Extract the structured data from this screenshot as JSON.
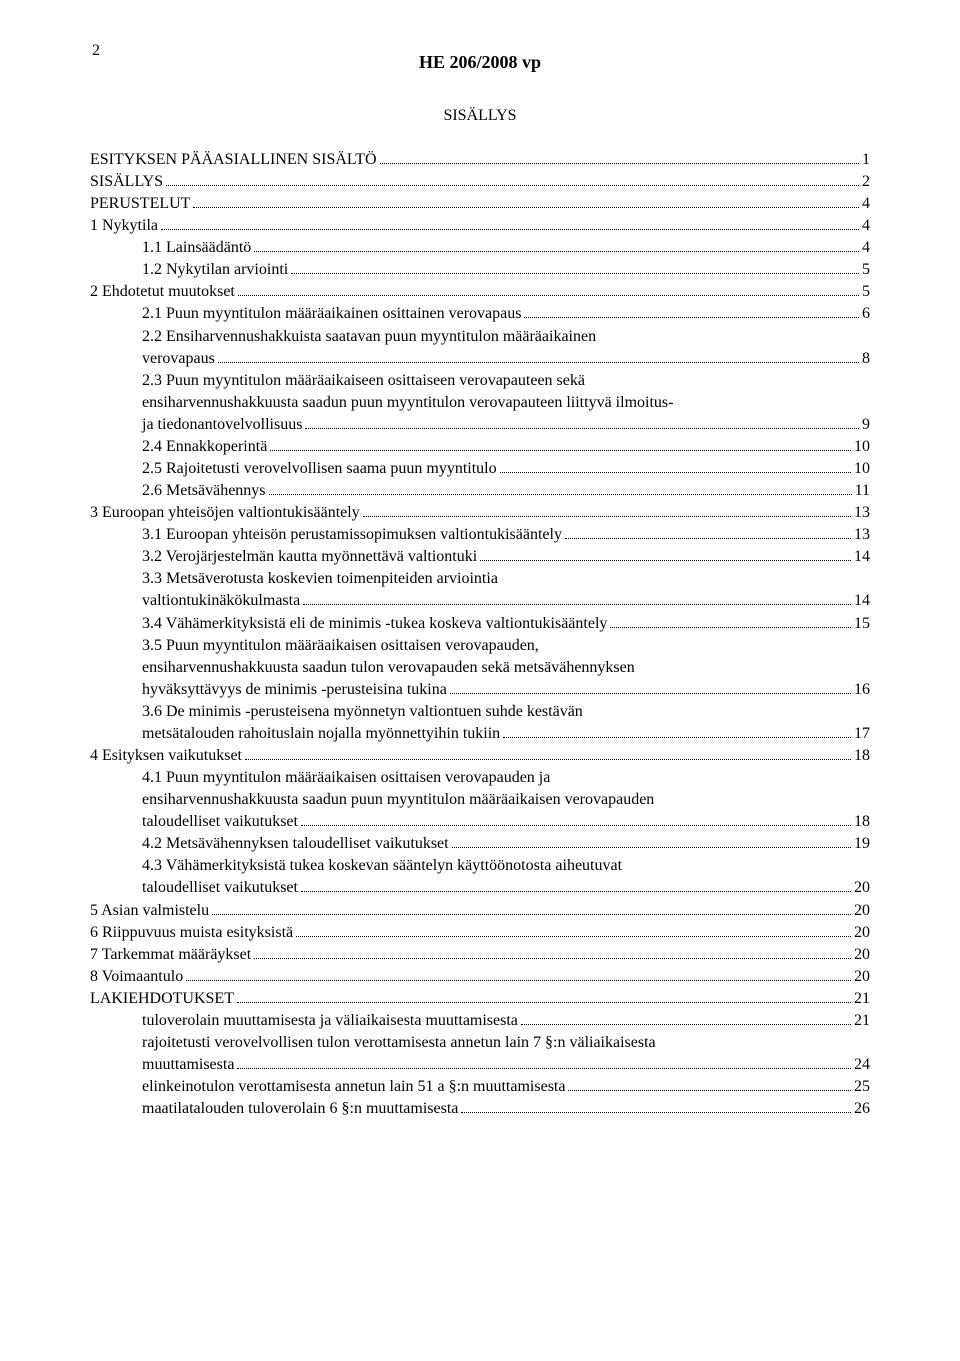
{
  "page_number": "2",
  "doc_title": "HE 206/2008 vp",
  "section_title": "SISÄLLYS",
  "entries": [
    {
      "indent": 0,
      "lines": [
        "ESITYKSEN PÄÄASIALLINEN SISÄLTÖ"
      ],
      "page": "1"
    },
    {
      "indent": 0,
      "lines": [
        "SISÄLLYS"
      ],
      "page": "2"
    },
    {
      "indent": 0,
      "lines": [
        "PERUSTELUT"
      ],
      "page": "4"
    },
    {
      "indent": 0,
      "lines": [
        "1    Nykytila"
      ],
      "page": "4"
    },
    {
      "indent": 1,
      "lines": [
        "1.1    Lainsäädäntö"
      ],
      "page": "4"
    },
    {
      "indent": 1,
      "lines": [
        "1.2    Nykytilan arviointi"
      ],
      "page": "5"
    },
    {
      "indent": 0,
      "lines": [
        "2    Ehdotetut muutokset"
      ],
      "page": "5"
    },
    {
      "indent": 1,
      "lines": [
        "2.1    Puun myyntitulon määräaikainen osittainen verovapaus"
      ],
      "page": "6"
    },
    {
      "indent": 1,
      "lines": [
        "2.2    Ensiharvennushakkuista saatavan puun myyntitulon määräaikainen",
        "verovapaus"
      ],
      "page": "8"
    },
    {
      "indent": 1,
      "lines": [
        "2.3    Puun myyntitulon määräaikaiseen osittaiseen verovapauteen sekä",
        "ensiharvennushakkuusta saadun puun myyntitulon verovapauteen liittyvä ilmoitus-",
        "ja tiedonantovelvollisuus"
      ],
      "page": "9"
    },
    {
      "indent": 1,
      "lines": [
        "2.4    Ennakkoperintä"
      ],
      "page": "10"
    },
    {
      "indent": 1,
      "lines": [
        "2.5    Rajoitetusti verovelvollisen saama puun myyntitulo"
      ],
      "page": "10"
    },
    {
      "indent": 1,
      "lines": [
        "2.6    Metsävähennys"
      ],
      "page": "11"
    },
    {
      "indent": 0,
      "lines": [
        "3    Euroopan yhteisöjen valtiontukisääntely"
      ],
      "page": "13"
    },
    {
      "indent": 1,
      "lines": [
        "3.1    Euroopan yhteisön perustamissopimuksen valtiontukisääntely"
      ],
      "page": "13"
    },
    {
      "indent": 1,
      "lines": [
        "3.2    Verojärjestelmän kautta myönnettävä valtiontuki"
      ],
      "page": "14"
    },
    {
      "indent": 1,
      "lines": [
        "3.3    Metsäverotusta koskevien toimenpiteiden arviointia",
        "valtiontukinäkökulmasta"
      ],
      "page": "14"
    },
    {
      "indent": 1,
      "lines": [
        "3.4    Vähämerkityksistä eli de minimis -tukea koskeva valtiontukisääntely"
      ],
      "page": "15"
    },
    {
      "indent": 1,
      "lines": [
        "3.5    Puun myyntitulon määräaikaisen osittaisen verovapauden,",
        "ensiharvennushakkuusta saadun tulon verovapauden sekä metsävähennyksen",
        "hyväksyttävyys de minimis -perusteisina tukina"
      ],
      "page": "16"
    },
    {
      "indent": 1,
      "lines": [
        "3.6    De minimis -perusteisena myönnetyn valtiontuen suhde kestävän",
        "metsätalouden rahoituslain nojalla myönnettyihin tukiin"
      ],
      "page": "17"
    },
    {
      "indent": 0,
      "lines": [
        "4    Esityksen vaikutukset"
      ],
      "page": "18"
    },
    {
      "indent": 1,
      "lines": [
        "4.1    Puun myyntitulon määräaikaisen osittaisen verovapauden ja",
        "ensiharvennushakkuusta saadun puun myyntitulon määräaikaisen verovapauden",
        "taloudelliset vaikutukset"
      ],
      "page": "18"
    },
    {
      "indent": 1,
      "lines": [
        "4.2    Metsävähennyksen taloudelliset vaikutukset"
      ],
      "page": "19"
    },
    {
      "indent": 1,
      "lines": [
        "4.3    Vähämerkityksistä tukea koskevan sääntelyn käyttöönotosta aiheutuvat",
        "taloudelliset vaikutukset"
      ],
      "page": "20"
    },
    {
      "indent": 0,
      "lines": [
        "5    Asian valmistelu"
      ],
      "page": "20"
    },
    {
      "indent": 0,
      "lines": [
        "6    Riippuvuus muista esityksistä"
      ],
      "page": "20"
    },
    {
      "indent": 0,
      "lines": [
        "7    Tarkemmat määräykset"
      ],
      "page": "20"
    },
    {
      "indent": 0,
      "lines": [
        "8    Voimaantulo"
      ],
      "page": "20"
    },
    {
      "indent": 0,
      "lines": [
        "LAKIEHDOTUKSET"
      ],
      "page": "21"
    },
    {
      "indent": 1,
      "lines": [
        "tuloverolain muuttamisesta ja väliaikaisesta muuttamisesta"
      ],
      "page": "21"
    },
    {
      "indent": 1,
      "lines": [
        "rajoitetusti verovelvollisen tulon verottamisesta annetun lain 7 §:n väliaikaisesta",
        "muuttamisesta"
      ],
      "page": "24"
    },
    {
      "indent": 1,
      "lines": [
        "elinkeinotulon verottamisesta annetun lain 51 a §:n muuttamisesta"
      ],
      "page": "25"
    },
    {
      "indent": 1,
      "lines": [
        "maatilatalouden tuloverolain 6 §:n muuttamisesta"
      ],
      "page": "26"
    }
  ]
}
